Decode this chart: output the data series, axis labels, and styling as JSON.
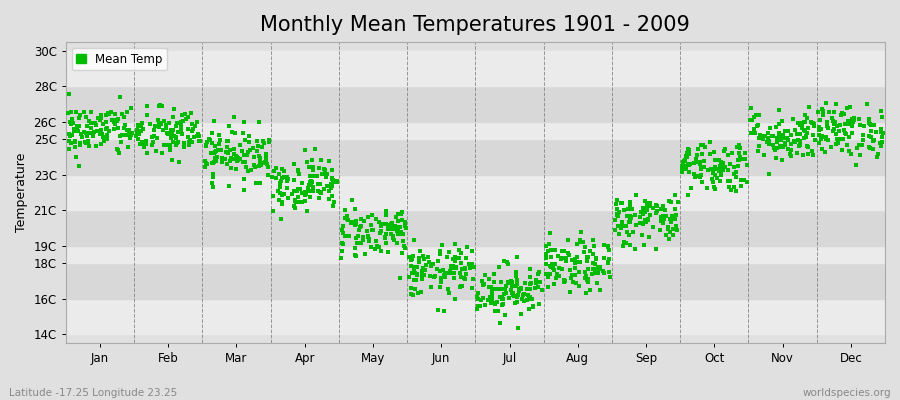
{
  "title": "Monthly Mean Temperatures 1901 - 2009",
  "ylabel": "Temperature",
  "xlabel_bottom": "Latitude -17.25 Longitude 23.25",
  "watermark": "worldspecies.org",
  "ylim": [
    13.5,
    30.5
  ],
  "months": [
    "Jan",
    "Feb",
    "Mar",
    "Apr",
    "May",
    "Jun",
    "Jul",
    "Aug",
    "Sep",
    "Oct",
    "Nov",
    "Dec"
  ],
  "mean_temps": [
    25.5,
    25.3,
    24.2,
    22.5,
    19.8,
    17.5,
    16.5,
    17.8,
    20.5,
    23.5,
    25.2,
    25.5
  ],
  "scatter_color": "#00bb00",
  "bg_color": "#e0e0e0",
  "band_light": "#ebebeb",
  "band_dark": "#d8d8d8",
  "grid_color": "#808080",
  "n_years": 109,
  "random_seed": 42,
  "std_dev": 0.75,
  "title_fontsize": 15,
  "axis_fontsize": 9,
  "tick_fontsize": 8.5,
  "marker_size": 9,
  "legend_fontsize": 8.5,
  "ytick_positions": [
    14,
    16,
    18,
    19,
    21,
    23,
    25,
    26,
    28,
    30
  ],
  "ytick_labels": [
    "14C",
    "16C",
    "18C",
    "19C",
    "21C",
    "23C",
    "25C",
    "26C",
    "28C",
    "30C"
  ]
}
